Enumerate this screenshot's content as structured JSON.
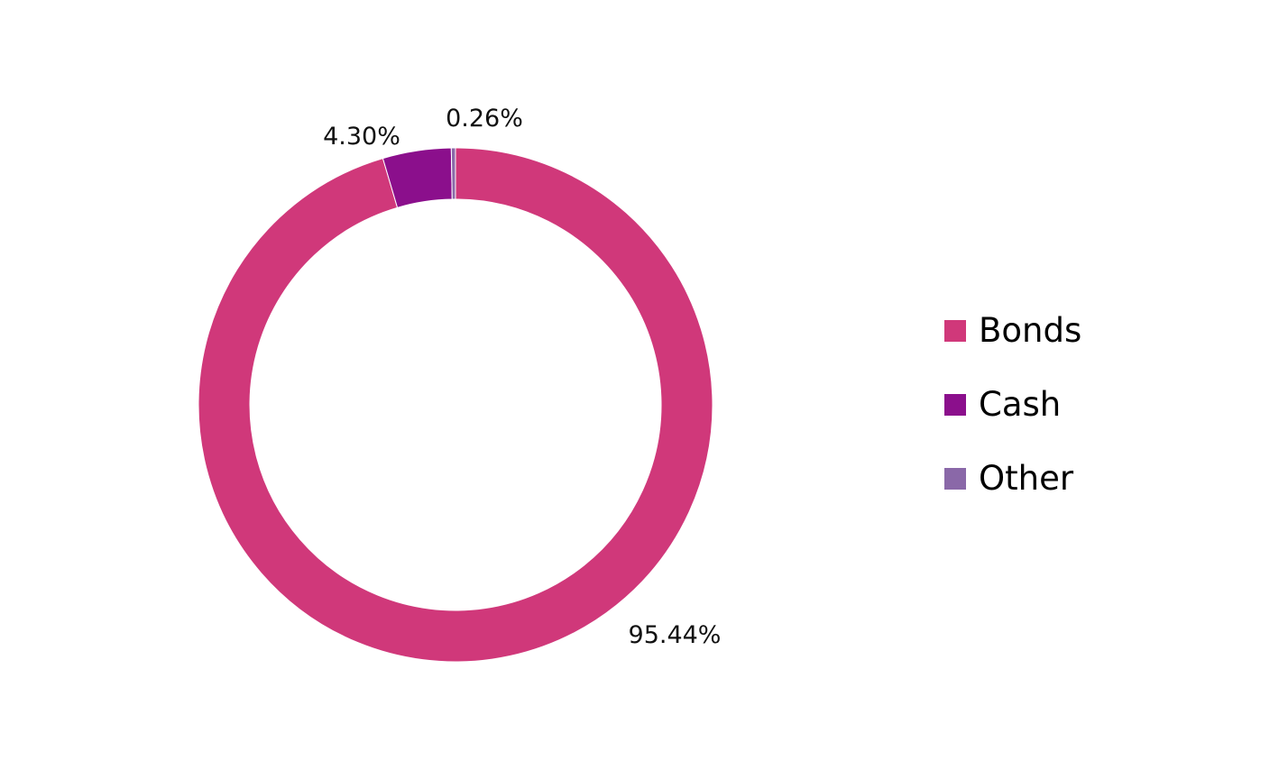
{
  "chart_data": {
    "type": "pie",
    "variant": "donut",
    "categories": [
      "Bonds",
      "Cash",
      "Other"
    ],
    "values": [
      95.44,
      4.3,
      0.26
    ],
    "data_labels": [
      "95.44%",
      "4.30%",
      "0.26%"
    ],
    "colors": [
      "#d0387a",
      "#8b0f8c",
      "#8a68a8"
    ],
    "title": "",
    "legend_position": "right",
    "start_angle": "top",
    "direction": "clockwise"
  }
}
